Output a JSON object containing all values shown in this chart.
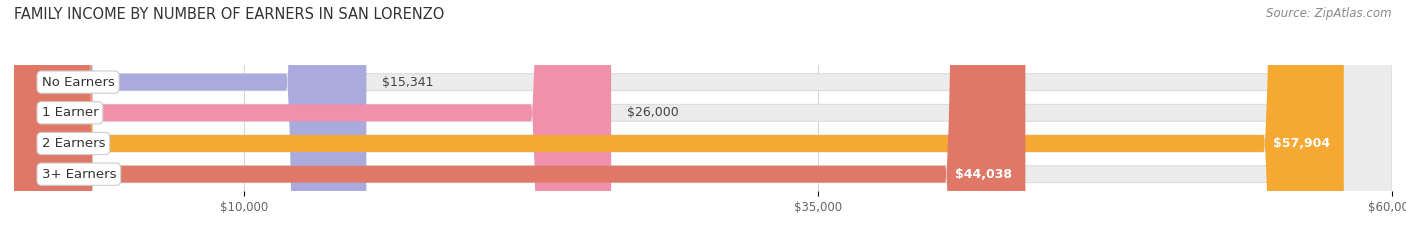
{
  "title": "FAMILY INCOME BY NUMBER OF EARNERS IN SAN LORENZO",
  "source": "Source: ZipAtlas.com",
  "categories": [
    "No Earners",
    "1 Earner",
    "2 Earners",
    "3+ Earners"
  ],
  "values": [
    15341,
    26000,
    57904,
    44038
  ],
  "labels": [
    "$15,341",
    "$26,000",
    "$57,904",
    "$44,038"
  ],
  "bar_colors": [
    "#aaaadd",
    "#f090aa",
    "#f5a832",
    "#e07868"
  ],
  "label_colors": [
    "#444444",
    "#444444",
    "#ffffff",
    "#ffffff"
  ],
  "xmin": 0,
  "xmax": 60000,
  "xticks": [
    10000,
    35000,
    60000
  ],
  "xtick_labels": [
    "$10,000",
    "$35,000",
    "$60,000"
  ],
  "title_fontsize": 10.5,
  "source_fontsize": 8.5,
  "bar_label_fontsize": 9,
  "category_fontsize": 9.5,
  "background_color": "#ffffff",
  "bar_bg_fill": "#ececec",
  "bar_bg_edge": "#dddddd"
}
